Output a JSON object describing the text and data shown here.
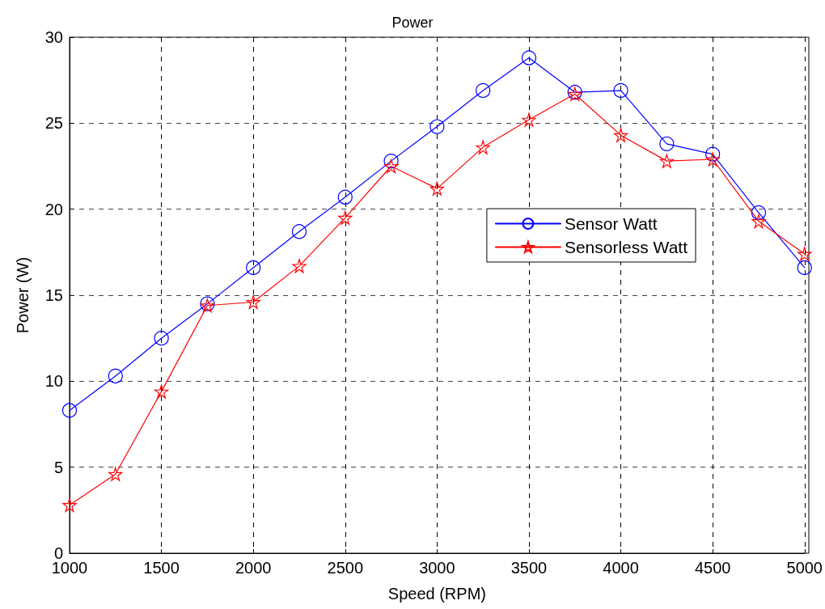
{
  "chart_data": {
    "type": "line",
    "title": "Power",
    "xlabel": "Speed (RPM)",
    "ylabel": "Power (W)",
    "x": [
      1000,
      1250,
      1500,
      1750,
      2000,
      2250,
      2500,
      2750,
      3000,
      3250,
      3500,
      3750,
      4000,
      4250,
      4500,
      4750,
      5000
    ],
    "series": [
      {
        "name": "Sensor Watt",
        "color": "#0000ff",
        "marker": "circle",
        "values": [
          8.3,
          10.3,
          12.5,
          14.5,
          16.6,
          18.7,
          20.7,
          22.8,
          24.8,
          26.9,
          28.8,
          26.8,
          26.9,
          23.8,
          23.2,
          19.8,
          16.6
        ]
      },
      {
        "name": "Sensorless Watt",
        "color": "#ff0000",
        "marker": "star",
        "values": [
          2.8,
          4.6,
          9.4,
          14.4,
          14.6,
          16.7,
          19.5,
          22.5,
          21.2,
          23.6,
          25.2,
          26.7,
          24.3,
          22.8,
          22.9,
          19.3,
          17.4
        ]
      }
    ],
    "xlim": [
      1000,
      5000
    ],
    "xticks": [
      1000,
      1500,
      2000,
      2500,
      3000,
      3500,
      4000,
      4500,
      5000
    ],
    "ylim": [
      0,
      30
    ],
    "yticks": [
      0,
      5,
      10,
      15,
      20,
      25,
      30
    ],
    "grid": true,
    "legend": "right",
    "line_style": "solid"
  }
}
